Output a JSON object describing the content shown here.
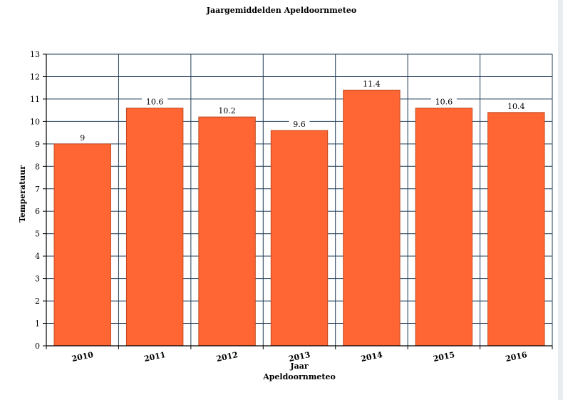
{
  "chart_data": {
    "type": "bar",
    "title": "Jaargemiddelden Apeldoornmeteo",
    "xlabel": "Jaar",
    "xlabel_sub": "Apeldoornmeteo",
    "ylabel": "Temperatuur",
    "categories": [
      "2010",
      "2011",
      "2012",
      "2013",
      "2014",
      "2015",
      "2016"
    ],
    "values": [
      9,
      10.6,
      10.2,
      9.6,
      11.4,
      10.6,
      10.4
    ],
    "data_labels": [
      "9",
      "10.6",
      "10.2",
      "9.6",
      "11.4",
      "10.6",
      "10.4"
    ],
    "ylim": [
      0,
      13
    ],
    "yticks": [
      0,
      1,
      2,
      3,
      4,
      5,
      6,
      7,
      8,
      9,
      10,
      11,
      12,
      13
    ],
    "grid": true,
    "bar_color": "#ff6633",
    "bar_edge_color": "#c0491f",
    "grid_color": "#1f3b57"
  }
}
